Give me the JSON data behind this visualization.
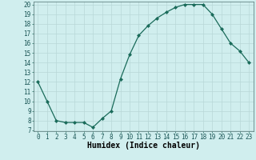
{
  "x": [
    0,
    1,
    2,
    3,
    4,
    5,
    6,
    7,
    8,
    9,
    10,
    11,
    12,
    13,
    14,
    15,
    16,
    17,
    18,
    19,
    20,
    21,
    22,
    23
  ],
  "y": [
    12,
    10,
    8,
    7.8,
    7.8,
    7.8,
    7.3,
    8.2,
    9,
    12.3,
    14.8,
    16.8,
    17.8,
    18.6,
    19.2,
    19.7,
    20,
    20,
    20,
    19,
    17.5,
    16,
    15.2,
    14
  ],
  "line_color": "#1a6b5a",
  "bg_color": "#d0eeee",
  "grid_color": "#b8d8d8",
  "xlabel": "Humidex (Indice chaleur)",
  "ylim_min": 7,
  "ylim_max": 20,
  "xlim_min": -0.5,
  "xlim_max": 23.5,
  "yticks": [
    7,
    8,
    9,
    10,
    11,
    12,
    13,
    14,
    15,
    16,
    17,
    18,
    19,
    20
  ],
  "xticks": [
    0,
    1,
    2,
    3,
    4,
    5,
    6,
    7,
    8,
    9,
    10,
    11,
    12,
    13,
    14,
    15,
    16,
    17,
    18,
    19,
    20,
    21,
    22,
    23
  ],
  "xlabel_fontsize": 7,
  "tick_fontsize": 5.5,
  "marker_size": 2.0,
  "line_width": 0.9
}
